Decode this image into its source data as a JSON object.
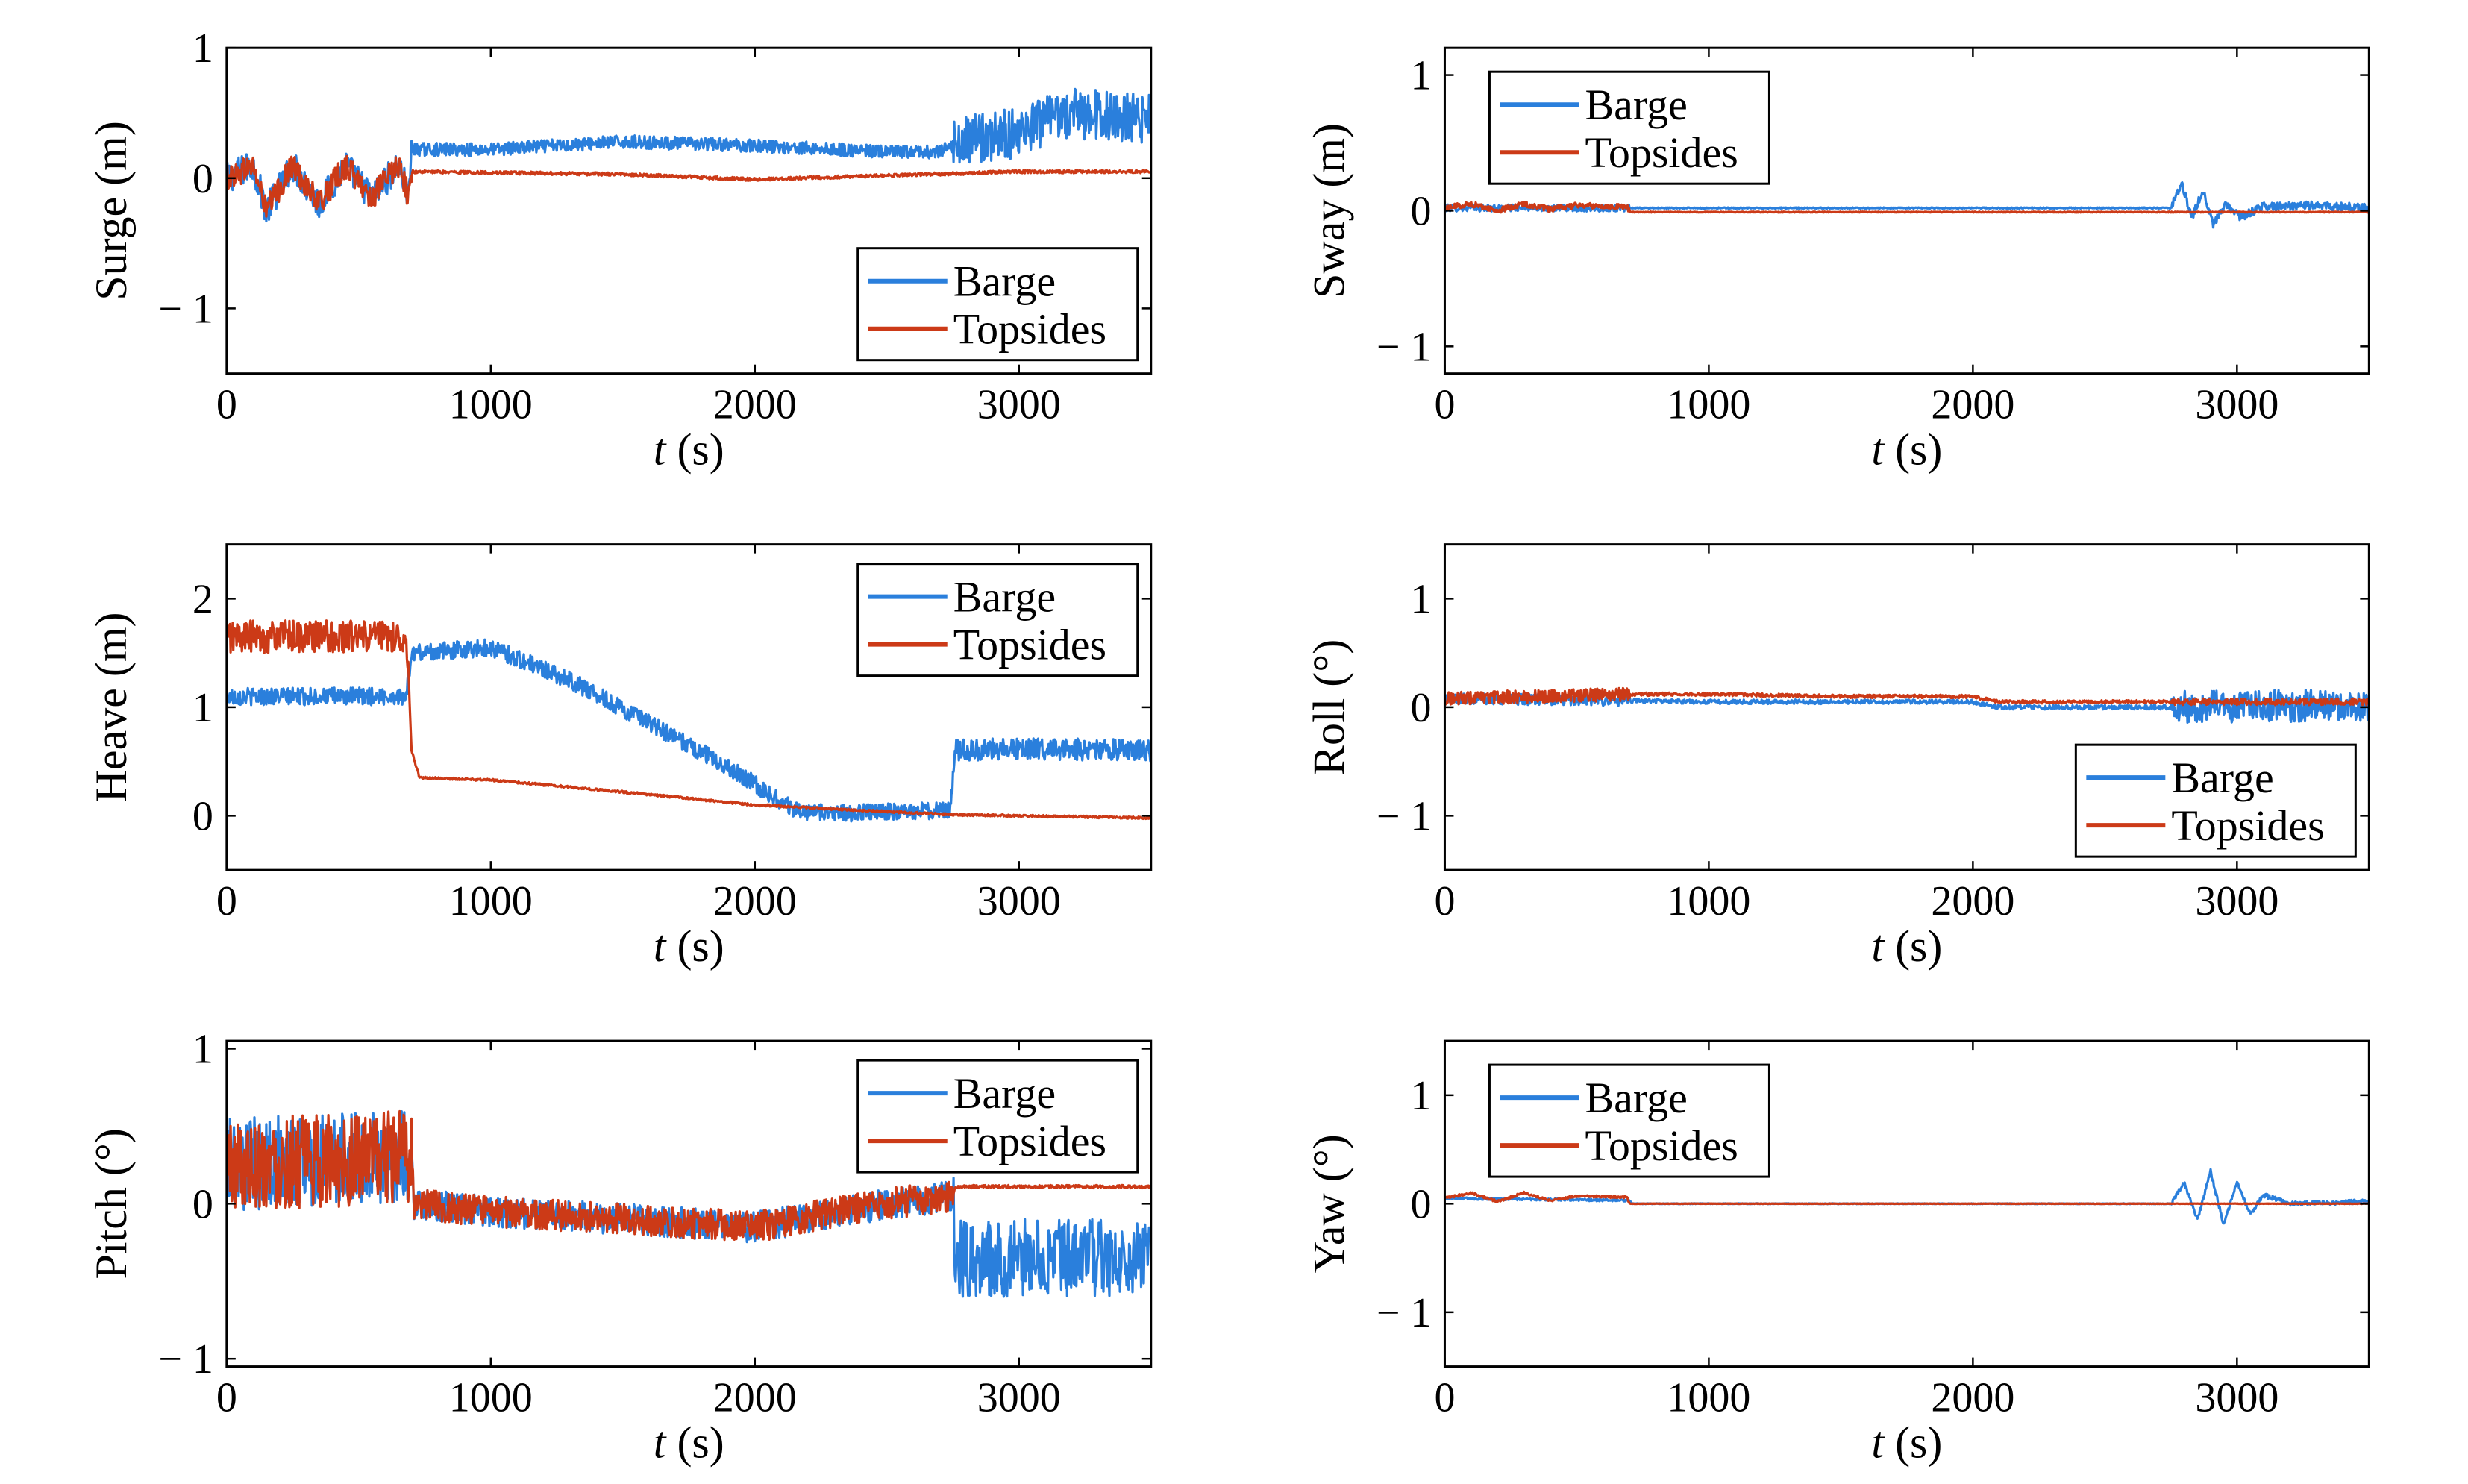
{
  "colors": {
    "barge": "#2a7fdc",
    "topsides": "#cc3a17"
  },
  "chart_data": [
    {
      "type": "line",
      "ylabel": "Surge (m)",
      "xlabel_var": "t",
      "xlabel_unit": "(s)",
      "xlim": [
        0,
        3500
      ],
      "ylim": [
        -1.5,
        1
      ],
      "xticks": [
        0,
        1000,
        2000,
        3000
      ],
      "yticks": [
        -1,
        0,
        1
      ],
      "legend": "bottom-right",
      "series": [
        {
          "name": "Barge",
          "color": "#2a7fdc",
          "values": [
            [
              0,
              0
            ],
            [
              100,
              0.1
            ],
            [
              150,
              -0.25
            ],
            [
              250,
              0.1
            ],
            [
              350,
              -0.2
            ],
            [
              450,
              0.1
            ],
            [
              550,
              -0.15
            ],
            [
              650,
              0.1
            ],
            [
              690,
              -0.15
            ],
            [
              700,
              0.22
            ],
            [
              1000,
              0.22
            ],
            [
              1500,
              0.28
            ],
            [
              2000,
              0.25
            ],
            [
              2500,
              0.2
            ],
            [
              2700,
              0.2
            ],
            [
              2800,
              0.3
            ],
            [
              3000,
              0.35
            ],
            [
              3200,
              0.5
            ],
            [
              3500,
              0.45
            ]
          ],
          "noise": [
            [
              0,
              700,
              0.12
            ],
            [
              700,
              2750,
              0.05
            ],
            [
              2750,
              3500,
              0.2
            ]
          ]
        },
        {
          "name": "Topsides",
          "color": "#cc3a17",
          "values": [
            [
              0,
              0
            ],
            [
              100,
              0.1
            ],
            [
              150,
              -0.25
            ],
            [
              250,
              0.1
            ],
            [
              350,
              -0.2
            ],
            [
              450,
              0.1
            ],
            [
              550,
              -0.15
            ],
            [
              650,
              0.1
            ],
            [
              690,
              -0.15
            ],
            [
              700,
              0.05
            ],
            [
              1500,
              0.03
            ],
            [
              2000,
              -0.01
            ],
            [
              2500,
              0.02
            ],
            [
              3000,
              0.05
            ],
            [
              3500,
              0.05
            ]
          ],
          "noise": [
            [
              0,
              700,
              0.1
            ],
            [
              700,
              3500,
              0.012
            ]
          ]
        }
      ]
    },
    {
      "type": "line",
      "ylabel": "Sway (m)",
      "xlabel_var": "t",
      "xlabel_unit": "(s)",
      "xlim": [
        0,
        3500
      ],
      "ylim": [
        -1.2,
        1.2
      ],
      "xticks": [
        0,
        1000,
        2000,
        3000
      ],
      "yticks": [
        -1,
        0,
        1
      ],
      "legend": "top-left",
      "series": [
        {
          "name": "Barge",
          "color": "#2a7fdc",
          "values": [
            [
              0,
              0.02
            ],
            [
              700,
              0.02
            ],
            [
              710,
              0.02
            ],
            [
              2750,
              0.02
            ],
            [
              2790,
              0.2
            ],
            [
              2830,
              -0.05
            ],
            [
              2870,
              0.15
            ],
            [
              2910,
              -0.1
            ],
            [
              2960,
              0.05
            ],
            [
              3010,
              -0.05
            ],
            [
              3100,
              0.03
            ],
            [
              3300,
              0.04
            ],
            [
              3500,
              0.02
            ]
          ],
          "noise": [
            [
              0,
              700,
              0.025
            ],
            [
              700,
              2750,
              0.004
            ],
            [
              2750,
              3500,
              0.03
            ]
          ]
        },
        {
          "name": "Topsides",
          "color": "#cc3a17",
          "values": [
            [
              0,
              0.02
            ],
            [
              100,
              0.05
            ],
            [
              200,
              0
            ],
            [
              300,
              0.05
            ],
            [
              400,
              0.01
            ],
            [
              500,
              0.04
            ],
            [
              690,
              0.03
            ],
            [
              700,
              -0.01
            ],
            [
              3500,
              -0.01
            ]
          ],
          "noise": [
            [
              0,
              700,
              0.02
            ],
            [
              700,
              3500,
              0.003
            ]
          ]
        }
      ]
    },
    {
      "type": "line",
      "ylabel": "Heave (m)",
      "xlabel_var": "t",
      "xlabel_unit": "(s)",
      "xlim": [
        0,
        3500
      ],
      "ylim": [
        -0.5,
        2.5
      ],
      "xticks": [
        0,
        1000,
        2000,
        3000
      ],
      "yticks": [
        0,
        1,
        2
      ],
      "legend": "top-right",
      "series": [
        {
          "name": "Barge",
          "color": "#2a7fdc",
          "values": [
            [
              0,
              1.1
            ],
            [
              680,
              1.1
            ],
            [
              700,
              1.5
            ],
            [
              1000,
              1.55
            ],
            [
              1300,
              1.25
            ],
            [
              1600,
              0.85
            ],
            [
              1900,
              0.45
            ],
            [
              2150,
              0.05
            ],
            [
              2300,
              0.02
            ],
            [
              2740,
              0.05
            ],
            [
              2760,
              0.6
            ],
            [
              3000,
              0.62
            ],
            [
              3500,
              0.6
            ]
          ],
          "noise": [
            [
              0,
              2750,
              0.08
            ],
            [
              2750,
              3500,
              0.1
            ]
          ]
        },
        {
          "name": "Topsides",
          "color": "#cc3a17",
          "values": [
            [
              0,
              1.65
            ],
            [
              680,
              1.65
            ],
            [
              690,
              1.2
            ],
            [
              700,
              0.6
            ],
            [
              730,
              0.35
            ],
            [
              1000,
              0.33
            ],
            [
              1500,
              0.22
            ],
            [
              2000,
              0.1
            ],
            [
              2400,
              0.05
            ],
            [
              2750,
              0.01
            ],
            [
              3500,
              -0.02
            ]
          ],
          "noise": [
            [
              0,
              690,
              0.15
            ],
            [
              690,
              3500,
              0.01
            ]
          ]
        }
      ]
    },
    {
      "type": "line",
      "ylabel": "Roll (°)",
      "xlabel_var": "t",
      "xlabel_unit": "(s)",
      "xlim": [
        0,
        3500
      ],
      "ylim": [
        -1.5,
        1.5
      ],
      "xticks": [
        0,
        1000,
        2000,
        3000
      ],
      "yticks": [
        -1,
        0,
        1
      ],
      "legend": "bottom-right",
      "series": [
        {
          "name": "Barge",
          "color": "#2a7fdc",
          "values": [
            [
              0,
              0.08
            ],
            [
              700,
              0.06
            ],
            [
              1000,
              0.05
            ],
            [
              1500,
              0.05
            ],
            [
              2000,
              0.05
            ],
            [
              2100,
              0
            ],
            [
              2750,
              0
            ],
            [
              3500,
              0.02
            ]
          ],
          "noise": [
            [
              0,
              700,
              0.05
            ],
            [
              700,
              2750,
              0.02
            ],
            [
              2750,
              3500,
              0.15
            ]
          ]
        },
        {
          "name": "Topsides",
          "color": "#cc3a17",
          "values": [
            [
              0,
              0.08
            ],
            [
              700,
              0.12
            ],
            [
              1000,
              0.12
            ],
            [
              1500,
              0.1
            ],
            [
              2000,
              0.1
            ],
            [
              2100,
              0.05
            ],
            [
              2750,
              0.05
            ],
            [
              3500,
              0.05
            ]
          ],
          "noise": [
            [
              0,
              700,
              0.06
            ],
            [
              700,
              2750,
              0.015
            ],
            [
              2750,
              3500,
              0.03
            ]
          ]
        }
      ]
    },
    {
      "type": "line",
      "ylabel": "Pitch (°)",
      "xlabel_var": "t",
      "xlabel_unit": "(s)",
      "xlim": [
        0,
        3500
      ],
      "ylim": [
        -1.05,
        1.05
      ],
      "xticks": [
        0,
        1000,
        2000,
        3000
      ],
      "yticks": [
        -1,
        0,
        1
      ],
      "legend": "top-right",
      "series": [
        {
          "name": "Barge",
          "color": "#2a7fdc",
          "values": [
            [
              0,
              0.25
            ],
            [
              700,
              0.3
            ],
            [
              710,
              0
            ],
            [
              1000,
              -0.05
            ],
            [
              1500,
              -0.1
            ],
            [
              2000,
              -0.15
            ],
            [
              2500,
              0
            ],
            [
              2750,
              0.05
            ],
            [
              2760,
              -0.35
            ],
            [
              3500,
              -0.35
            ]
          ],
          "noise": [
            [
              0,
              700,
              0.3
            ],
            [
              700,
              2750,
              0.1
            ],
            [
              2750,
              3500,
              0.25
            ]
          ]
        },
        {
          "name": "Topsides",
          "color": "#cc3a17",
          "values": [
            [
              0,
              0.25
            ],
            [
              700,
              0.3
            ],
            [
              710,
              0
            ],
            [
              1000,
              -0.05
            ],
            [
              1500,
              -0.1
            ],
            [
              2000,
              -0.15
            ],
            [
              2500,
              0
            ],
            [
              2750,
              0.05
            ],
            [
              2760,
              0.11
            ],
            [
              3500,
              0.11
            ]
          ],
          "noise": [
            [
              0,
              700,
              0.3
            ],
            [
              700,
              2750,
              0.1
            ],
            [
              2750,
              3500,
              0.01
            ]
          ]
        }
      ]
    },
    {
      "type": "line",
      "ylabel": "Yaw (°)",
      "xlabel_var": "t",
      "xlabel_unit": "(s)",
      "xlim": [
        0,
        3500
      ],
      "ylim": [
        -1.5,
        1.5
      ],
      "xticks": [
        0,
        1000,
        2000,
        3000
      ],
      "yticks": [
        -1,
        0,
        1
      ],
      "legend": "top-left",
      "series": [
        {
          "name": "Barge",
          "color": "#2a7fdc",
          "values": [
            [
              0,
              0.05
            ],
            [
              700,
              0.03
            ],
            [
              710,
              0
            ],
            [
              2750,
              0
            ],
            [
              2800,
              0.2
            ],
            [
              2850,
              -0.15
            ],
            [
              2900,
              0.3
            ],
            [
              2950,
              -0.2
            ],
            [
              3000,
              0.2
            ],
            [
              3050,
              -0.1
            ],
            [
              3100,
              0.08
            ],
            [
              3200,
              0
            ],
            [
              3500,
              0.02
            ]
          ],
          "noise": [
            [
              0,
              700,
              0.01
            ],
            [
              700,
              2750,
              0.003
            ],
            [
              2750,
              3500,
              0.02
            ]
          ]
        },
        {
          "name": "Topsides",
          "color": "#cc3a17",
          "values": [
            [
              0,
              0.05
            ],
            [
              100,
              0.1
            ],
            [
              200,
              0.02
            ],
            [
              300,
              0.1
            ],
            [
              400,
              0.03
            ],
            [
              500,
              0.07
            ],
            [
              690,
              0.06
            ],
            [
              700,
              0
            ],
            [
              3500,
              0
            ]
          ],
          "noise": [
            [
              0,
              700,
              0.01
            ],
            [
              700,
              3500,
              0.002
            ]
          ]
        }
      ]
    }
  ]
}
